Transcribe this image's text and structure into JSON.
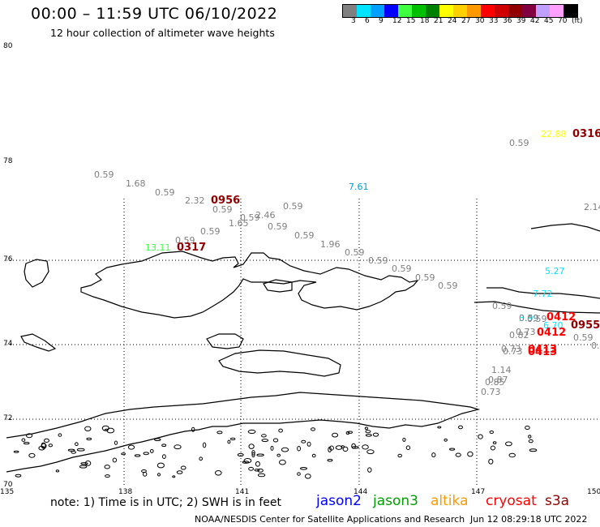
{
  "header": {
    "title": "00:00 – 11:59 UTC 06/10/2022",
    "subtitle": "12 hour collection of altimeter wave heights"
  },
  "color_scale": {
    "labels": [
      "3",
      "6",
      "9",
      "12",
      "15",
      "18",
      "21",
      "24",
      "27",
      "30",
      "33",
      "36",
      "39",
      "42",
      "45",
      "70",
      "(ft)"
    ],
    "colors": [
      "#808080",
      "#00e5ff",
      "#00a0ff",
      "#0000ff",
      "#40ff40",
      "#00c000",
      "#008000",
      "#ffff00",
      "#ffd000",
      "#ff9900",
      "#ff0000",
      "#d00000",
      "#900000",
      "#800040",
      "#c0a0ff",
      "#ffa0ff",
      "#000000"
    ]
  },
  "map": {
    "lat_labels": [
      "80",
      "78",
      "76",
      "74",
      "72",
      "70"
    ],
    "lon_labels": [
      "135",
      "138",
      "141",
      "144",
      "147",
      "150"
    ]
  },
  "wave_values": [
    {
      "text": "0.59",
      "color": "#808080"
    },
    {
      "text": "22.88",
      "color": "#ffff00"
    },
    {
      "text": "0.59",
      "color": "#808080"
    },
    {
      "text": "1.68",
      "color": "#808080"
    },
    {
      "text": "0.59",
      "color": "#808080"
    },
    {
      "text": "2.32",
      "color": "#808080"
    },
    {
      "text": "0.59",
      "color": "#808080"
    },
    {
      "text": "2.46",
      "color": "#808080"
    },
    {
      "text": "0.59",
      "color": "#808080"
    },
    {
      "text": "0.59",
      "color": "#808080"
    },
    {
      "text": "1.65",
      "color": "#808080"
    },
    {
      "text": "0.59",
      "color": "#808080"
    },
    {
      "text": "0.59",
      "color": "#808080"
    },
    {
      "text": "0.59",
      "color": "#808080"
    },
    {
      "text": "0.59",
      "color": "#808080"
    },
    {
      "text": "1.96",
      "color": "#808080"
    },
    {
      "text": "0.59",
      "color": "#808080"
    },
    {
      "text": "0.59",
      "color": "#808080"
    },
    {
      "text": "0.59",
      "color": "#808080"
    },
    {
      "text": "0.59",
      "color": "#808080"
    },
    {
      "text": "0.59",
      "color": "#808080"
    },
    {
      "text": "7.61",
      "color": "#00a0e0"
    },
    {
      "text": "2.14",
      "color": "#808080"
    },
    {
      "text": "13.11",
      "color": "#40ff40"
    },
    {
      "text": "0.59",
      "color": "#808080"
    },
    {
      "text": "5.27",
      "color": "#00e5ff"
    },
    {
      "text": "7.72",
      "color": "#00e5ff"
    },
    {
      "text": "0.59",
      "color": "#808080"
    },
    {
      "text": "3.99",
      "color": "#00e5ff"
    },
    {
      "text": "0.59",
      "color": "#808080"
    },
    {
      "text": "6.70",
      "color": "#00e5ff"
    },
    {
      "text": "0.82",
      "color": "#808080"
    },
    {
      "text": "0.73",
      "color": "#808080"
    },
    {
      "text": "0.59",
      "color": "#808080"
    },
    {
      "text": "0.73",
      "color": "#808080"
    },
    {
      "text": "0.73",
      "color": "#808080"
    },
    {
      "text": "0.4",
      "color": "#808080"
    },
    {
      "text": "1.14",
      "color": "#808080"
    },
    {
      "text": "0.87",
      "color": "#808080"
    },
    {
      "text": "0.85",
      "color": "#808080"
    },
    {
      "text": "0.73",
      "color": "#808080"
    }
  ],
  "pass_times": [
    {
      "text": "0316",
      "color": "#900000"
    },
    {
      "text": "0956",
      "color": "#900000"
    },
    {
      "text": "0317",
      "color": "#900000"
    },
    {
      "text": "0412",
      "color": "#ff0000"
    },
    {
      "text": "0955",
      "color": "#900000"
    },
    {
      "text": "0412",
      "color": "#ff0000"
    },
    {
      "text": "0413",
      "color": "#ff0000"
    },
    {
      "text": "0413",
      "color": "#ff0000"
    }
  ],
  "note": "note: 1) Time is in UTC; 2) SWH is in feet",
  "satellites": [
    {
      "name": "jason2",
      "color": "#0000ff"
    },
    {
      "name": "jason3",
      "color": "#00a000"
    },
    {
      "name": "altika",
      "color": "#ff9900"
    },
    {
      "name": "cryosat",
      "color": "#ff0000"
    },
    {
      "name": "s3a",
      "color": "#900000"
    }
  ],
  "footer": "NOAA/NESDIS Center for Satellite Applications and Research",
  "timestamp": "Jun 12 08:29:18 UTC 2022"
}
